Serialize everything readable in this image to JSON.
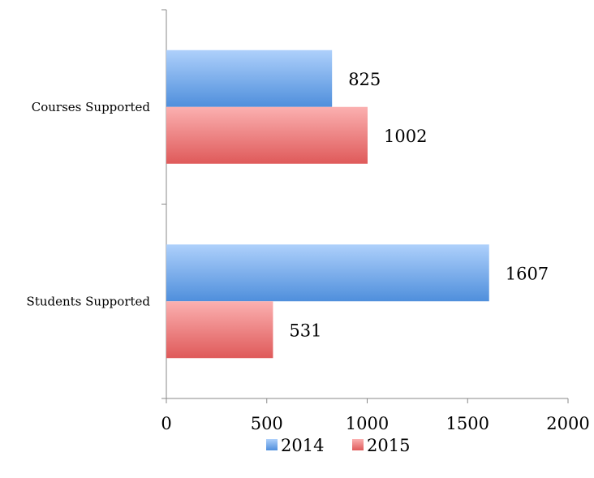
{
  "chart_data": {
    "type": "bar",
    "orientation": "horizontal",
    "categories": [
      "Courses Supported",
      "Students Supported"
    ],
    "series": [
      {
        "name": "2014",
        "values": [
          825,
          1607
        ],
        "color": "#5b9bd5"
      },
      {
        "name": "2015",
        "values": [
          1002,
          531
        ],
        "color": "#e06666"
      }
    ],
    "xlim": [
      0,
      2000
    ],
    "x_ticks": [
      "0",
      "500",
      "1000",
      "1500",
      "2000"
    ],
    "data_labels": true,
    "grid": false,
    "legend_position": "bottom"
  }
}
